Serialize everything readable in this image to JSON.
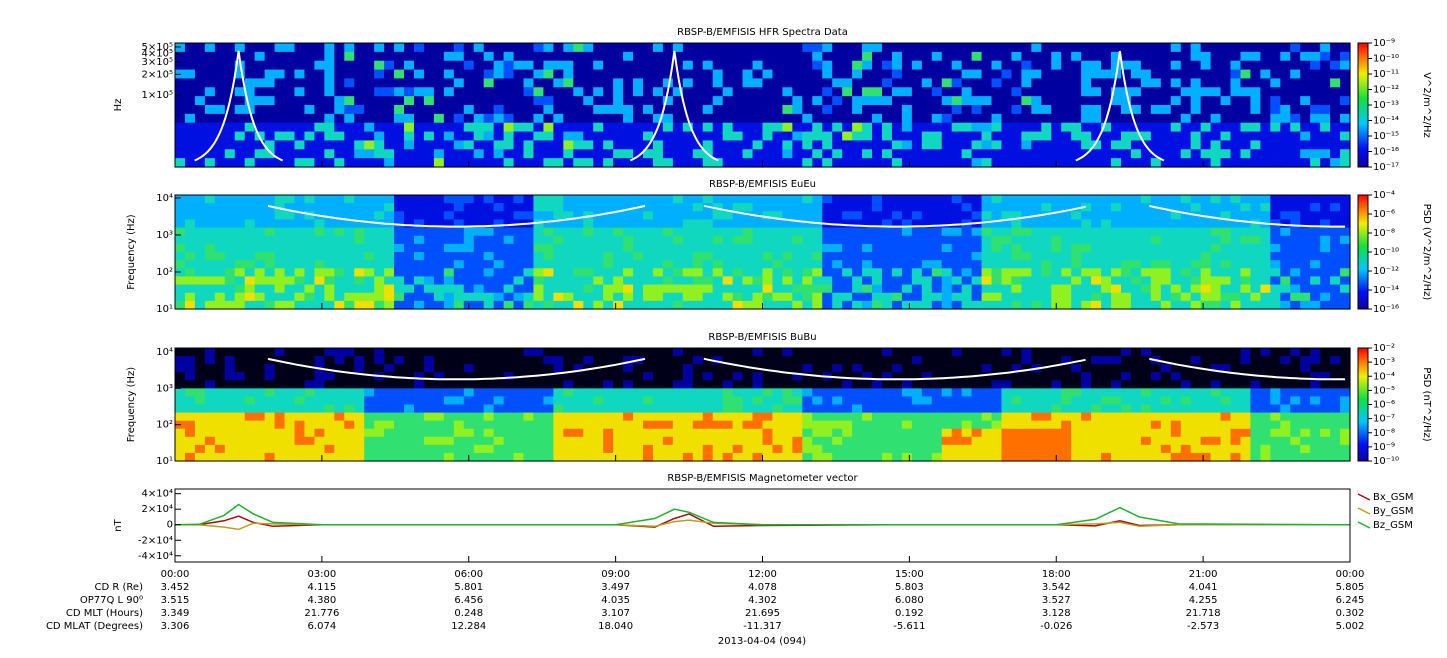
{
  "chart_data": [
    {
      "type": "spectrogram",
      "title": "RBSP-B/EMFISIS  HFR Spectra Data",
      "ylabel": "Hz",
      "log": true,
      "ylim": [
        9000,
        570000
      ],
      "yticks": [
        {
          "value": 100000,
          "label": "1×10⁵"
        },
        {
          "value": 200000,
          "label": "2×10⁵"
        },
        {
          "value": 300000,
          "label": "3×10⁵"
        },
        {
          "value": 400000,
          "label": "4×10⁵"
        },
        {
          "value": 500000,
          "label": "5×10⁵"
        }
      ],
      "colorbar": {
        "label": "V^2/m^2/Hz",
        "lim": [
          1e-17,
          1e-09
        ],
        "ticks": [
          {
            "value": 1e-17,
            "label": "10⁻¹⁷"
          },
          {
            "value": 1e-16,
            "label": "10⁻¹⁶"
          },
          {
            "value": 1e-15,
            "label": "10⁻¹⁵"
          },
          {
            "value": 1e-14,
            "label": "10⁻¹⁴"
          },
          {
            "value": 1e-13,
            "label": "10⁻¹³"
          },
          {
            "value": 1e-12,
            "label": "10⁻¹²"
          },
          {
            "value": 1e-11,
            "label": "10⁻¹¹"
          },
          {
            "value": 1e-10,
            "label": "10⁻¹⁰"
          },
          {
            "value": 1e-09,
            "label": "10⁻⁹"
          }
        ]
      }
    },
    {
      "type": "spectrogram",
      "title": "RBSP-B/EMFISIS  EuEu",
      "ylabel": "Frequency (Hz)",
      "log": true,
      "ylim": [
        10,
        12000
      ],
      "yticks": [
        {
          "value": 10,
          "label": "10¹"
        },
        {
          "value": 100,
          "label": "10²"
        },
        {
          "value": 1000,
          "label": "10³"
        },
        {
          "value": 10000,
          "label": "10⁴"
        }
      ],
      "colorbar": {
        "label": "PSD (V^2/m^2/Hz)",
        "lim": [
          1e-16,
          0.0001
        ],
        "ticks": [
          {
            "value": 1e-16,
            "label": "10⁻¹⁶"
          },
          {
            "value": 1e-14,
            "label": "10⁻¹⁴"
          },
          {
            "value": 1e-12,
            "label": "10⁻¹²"
          },
          {
            "value": 1e-10,
            "label": "10⁻¹⁰"
          },
          {
            "value": 1e-08,
            "label": "10⁻⁸"
          },
          {
            "value": 1e-06,
            "label": "10⁻⁶"
          },
          {
            "value": 0.0001,
            "label": "10⁻⁴"
          }
        ]
      }
    },
    {
      "type": "spectrogram",
      "title": "RBSP-B/EMFISIS  BuBu",
      "ylabel": "Frequency (Hz)",
      "log": true,
      "ylim": [
        10,
        13000
      ],
      "yticks": [
        {
          "value": 10,
          "label": "10¹"
        },
        {
          "value": 100,
          "label": "10²"
        },
        {
          "value": 1000,
          "label": "10³"
        },
        {
          "value": 10000,
          "label": "10⁴"
        }
      ],
      "colorbar": {
        "label": "PSD (nT^2/Hz)",
        "lim": [
          1e-10,
          0.01
        ],
        "ticks": [
          {
            "value": 1e-10,
            "label": "10⁻¹⁰"
          },
          {
            "value": 1e-09,
            "label": "10⁻⁹"
          },
          {
            "value": 1e-08,
            "label": "10⁻⁸"
          },
          {
            "value": 1e-07,
            "label": "10⁻⁷"
          },
          {
            "value": 1e-06,
            "label": "10⁻⁶"
          },
          {
            "value": 1e-05,
            "label": "10⁻⁵"
          },
          {
            "value": 0.0001,
            "label": "10⁻⁴"
          },
          {
            "value": 0.001,
            "label": "10⁻³"
          },
          {
            "value": 0.01,
            "label": "10⁻²"
          }
        ]
      }
    },
    {
      "type": "line",
      "title": "RBSP-B/EMFISIS  Magnetometer vector",
      "ylabel": "nT",
      "ylim": [
        -48000,
        46000
      ],
      "yticks": [
        {
          "value": -40000,
          "label": "-4×10⁴"
        },
        {
          "value": -20000,
          "label": "-2×10⁴"
        },
        0,
        {
          "value": 20000,
          "label": "2×10⁴"
        },
        {
          "value": 40000,
          "label": "4×10⁴"
        }
      ],
      "xlim": [
        0,
        24
      ],
      "xticks": [
        {
          "value": 0,
          "label": "00:00"
        },
        {
          "value": 3,
          "label": "03:00"
        },
        {
          "value": 6,
          "label": "06:00"
        },
        {
          "value": 9,
          "label": "09:00"
        },
        {
          "value": 12,
          "label": "12:00"
        },
        {
          "value": 15,
          "label": "15:00"
        },
        {
          "value": 18,
          "label": "18:00"
        },
        {
          "value": 21,
          "label": "21:00"
        },
        {
          "value": 24,
          "label": "00:00"
        }
      ],
      "x": [
        0,
        0.5,
        1,
        1.3,
        1.6,
        2,
        3,
        6,
        9,
        9.8,
        10.2,
        10.5,
        11,
        12,
        15,
        18,
        18.8,
        19.3,
        19.7,
        20.5,
        24
      ],
      "series": [
        {
          "name": "Bx_GSM",
          "color": "#a01010",
          "values": [
            0,
            200,
            5000,
            11000,
            3000,
            -2000,
            0,
            0,
            0,
            -3000,
            8000,
            14000,
            -2000,
            -1000,
            0,
            0,
            -1500,
            5000,
            -1000,
            0,
            0
          ]
        },
        {
          "name": "By_GSM",
          "color": "#b8a020",
          "values": [
            0,
            -200,
            -3000,
            -6000,
            2000,
            1000,
            0,
            0,
            0,
            -2000,
            4000,
            6000,
            2000,
            0,
            0,
            0,
            1000,
            3000,
            -2000,
            0,
            0
          ]
        },
        {
          "name": "Bz_GSM",
          "color": "#20b030",
          "values": [
            0,
            500,
            12000,
            26000,
            14000,
            3000,
            0,
            0,
            0,
            8000,
            20000,
            16000,
            3000,
            0,
            0,
            0,
            7000,
            22000,
            10000,
            1000,
            0
          ]
        }
      ]
    }
  ],
  "ephemeris": {
    "rows": [
      {
        "label": "CD R (Re)",
        "values": [
          "3.452",
          "4.115",
          "5.801",
          "3.497",
          "4.078",
          "5.803",
          "3.542",
          "4.041",
          "5.805"
        ]
      },
      {
        "label": "OP77Q L 90⁰",
        "values": [
          "3.515",
          "4.380",
          "6.456",
          "4.035",
          "4.302",
          "6.080",
          "3.527",
          "4.255",
          "6.245"
        ]
      },
      {
        "label": "CD MLT (Hours)",
        "values": [
          "3.349",
          "21.776",
          "0.248",
          "3.107",
          "21.695",
          "0.192",
          "3.128",
          "21.718",
          "0.302"
        ]
      },
      {
        "label": "CD MLAT (Degrees)",
        "values": [
          "3.306",
          "6.074",
          "12.284",
          "18.040",
          "-11.317",
          "-5.611",
          "-0.026",
          "-2.573",
          "5.002"
        ]
      }
    ],
    "date": "2013-04-04 (094)"
  }
}
